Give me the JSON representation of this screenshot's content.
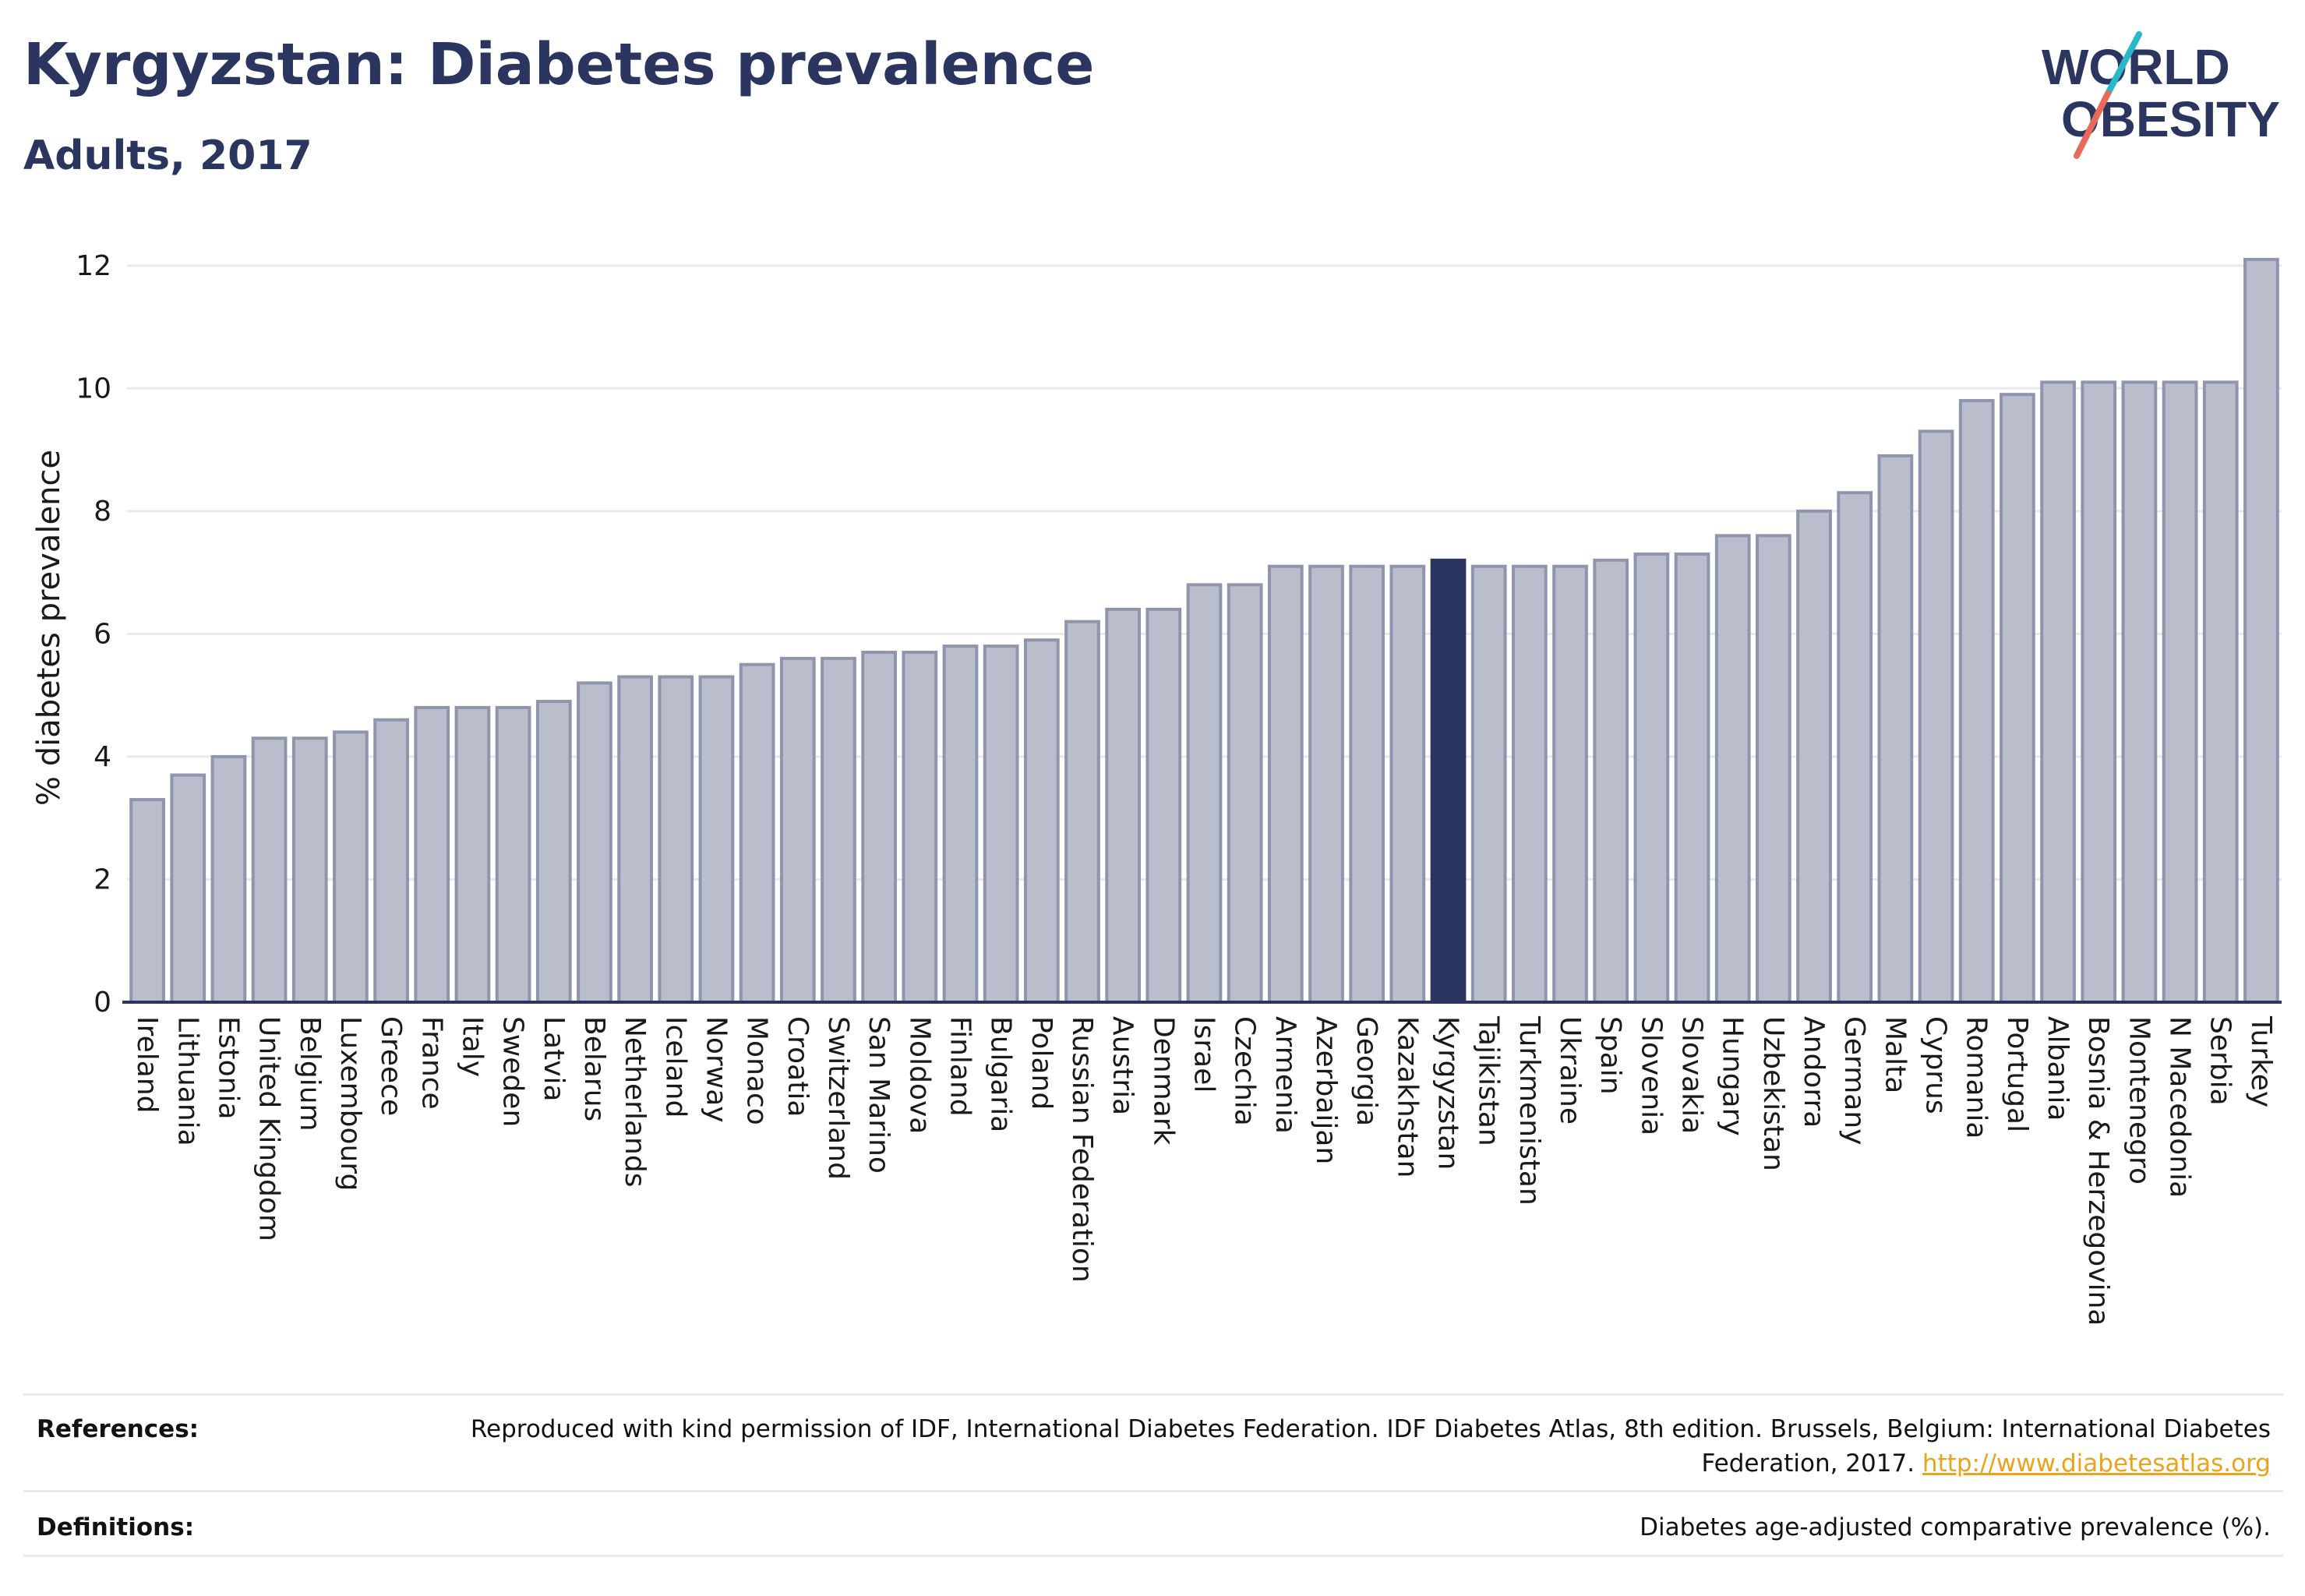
{
  "header": {
    "title": "Kyrgyzstan: Diabetes prevalence",
    "subtitle": "Adults, 2017"
  },
  "logo": {
    "line1": "WORLD",
    "line2": "OBESITY",
    "slash_colors": [
      "#2ab7c7",
      "#e86a5a"
    ],
    "text_color": "#2a3560"
  },
  "chart_data": {
    "type": "bar",
    "ylabel": "% diabetes prevalence",
    "ylim": [
      0,
      12.2
    ],
    "yticks": [
      0,
      2,
      4,
      6,
      8,
      10,
      12
    ],
    "grid": true,
    "highlight": "Kyrgyzstan",
    "colors": {
      "bar": "#b9bdcc",
      "bar_edge": "#8f95ad",
      "highlight": "#2a3560"
    },
    "categories": [
      "Ireland",
      "Lithuania",
      "Estonia",
      "United Kingdom",
      "Belgium",
      "Luxembourg",
      "Greece",
      "France",
      "Italy",
      "Sweden",
      "Latvia",
      "Belarus",
      "Netherlands",
      "Iceland",
      "Norway",
      "Monaco",
      "Croatia",
      "Switzerland",
      "San Marino",
      "Moldova",
      "Finland",
      "Bulgaria",
      "Poland",
      "Russian Federation",
      "Austria",
      "Denmark",
      "Israel",
      "Czechia",
      "Armenia",
      "Azerbaijan",
      "Georgia",
      "Kazakhstan",
      "Kyrgyzstan",
      "Tajikistan",
      "Turkmenistan",
      "Ukraine",
      "Spain",
      "Slovenia",
      "Slovakia",
      "Hungary",
      "Uzbekistan",
      "Andorra",
      "Germany",
      "Malta",
      "Cyprus",
      "Romania",
      "Portugal",
      "Albania",
      "Bosnia & Herzegovina",
      "Montenegro",
      "N Macedonia",
      "Serbia",
      "Turkey"
    ],
    "values": [
      3.3,
      3.7,
      4.0,
      4.3,
      4.3,
      4.4,
      4.6,
      4.8,
      4.8,
      4.8,
      4.9,
      5.2,
      5.3,
      5.3,
      5.3,
      5.5,
      5.6,
      5.6,
      5.7,
      5.7,
      5.8,
      5.8,
      5.9,
      6.2,
      6.4,
      6.4,
      6.8,
      6.8,
      7.1,
      7.1,
      7.1,
      7.1,
      7.2,
      7.1,
      7.1,
      7.1,
      7.2,
      7.3,
      7.3,
      7.6,
      7.6,
      8.0,
      8.3,
      8.9,
      9.3,
      9.8,
      9.9,
      10.1,
      10.1,
      10.1,
      10.1,
      10.1,
      12.1
    ]
  },
  "footer": {
    "references_label": "References:",
    "references_text": "Reproduced with kind permission of IDF, International Diabetes Federation. IDF Diabetes Atlas, 8th edition. Brussels, Belgium: International Diabetes Federation, 2017.",
    "references_link": "http://www.diabetesatlas.org",
    "definitions_label": "Definitions:",
    "definitions_text": "Diabetes age-adjusted comparative prevalence (%)."
  }
}
